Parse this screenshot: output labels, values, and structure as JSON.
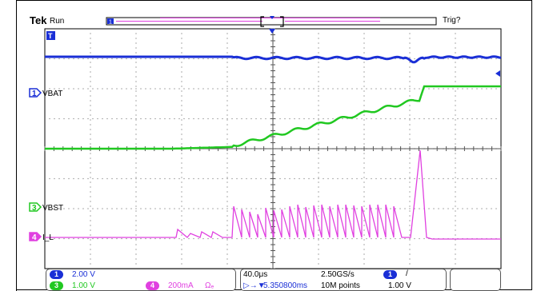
{
  "header": {
    "brand": "Tek",
    "acq_state": "Run",
    "trigger_status": "Trig?"
  },
  "channels": [
    {
      "id": "1",
      "name": "VBAT",
      "color": "#1a2fd6"
    },
    {
      "id": "3",
      "name": "VBST",
      "color": "#21c821"
    },
    {
      "id": "4",
      "name": "I_L",
      "color": "#e040e0"
    }
  ],
  "footer": {
    "ch1_scale": "2.00 V",
    "ch3_scale": "1.00 V",
    "ch4_scale": "200mA",
    "ch4_bw": "Ωₑ",
    "timebase": "40.0μs",
    "sample_rate": "2.50GS/s",
    "record_length": "10M points",
    "delay": "5.350800ms",
    "trigger_source": "1",
    "trigger_slope": "/",
    "trigger_level": "1.00 V"
  },
  "colors": {
    "ch1": "#1a2fd6",
    "ch3": "#21c821",
    "ch4": "#e040e0",
    "grid": "#9a9a9a",
    "frame": "#000000"
  }
}
